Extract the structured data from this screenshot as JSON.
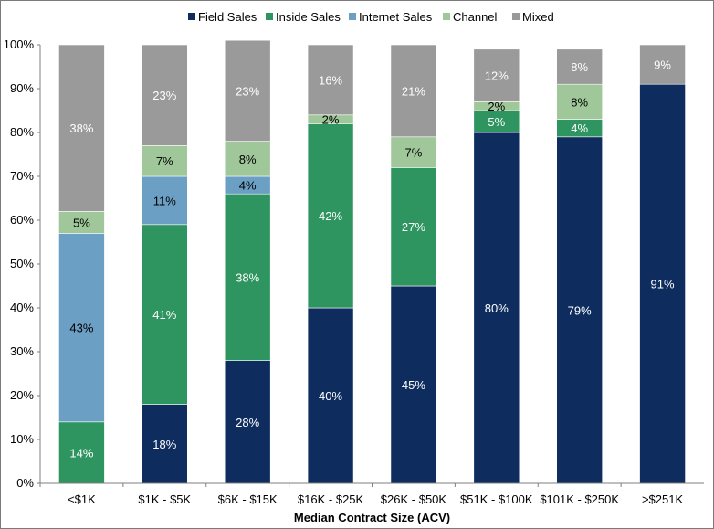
{
  "chart_data": {
    "type": "bar",
    "stacked": true,
    "title": "",
    "xlabel": "Median Contract Size (ACV)",
    "ylabel": "",
    "ylim": [
      0,
      100
    ],
    "y_ticks": [
      "0%",
      "10%",
      "20%",
      "30%",
      "40%",
      "50%",
      "60%",
      "70%",
      "80%",
      "90%",
      "100%"
    ],
    "grid": false,
    "legend_position": "top",
    "categories": [
      "<$1K",
      "$1K - $5K",
      "$6K - $15K",
      "$16K - $25K",
      "$26K - $50K",
      "$51K - $100K",
      "$101K - $250K",
      ">$251K"
    ],
    "series": [
      {
        "name": "Field Sales",
        "color": "#0e2d5e",
        "label_color": "#ffffff",
        "values": [
          0,
          18,
          28,
          40,
          45,
          80,
          79,
          91
        ],
        "labels": [
          "",
          "18%",
          "28%",
          "40%",
          "45%",
          "80%",
          "79%",
          "91%"
        ]
      },
      {
        "name": "Inside Sales",
        "color": "#2e9460",
        "label_color": "#ffffff",
        "values": [
          14,
          41,
          38,
          42,
          27,
          5,
          4,
          0
        ],
        "labels": [
          "14%",
          "41%",
          "38%",
          "42%",
          "27%",
          "5%",
          "4%",
          ""
        ]
      },
      {
        "name": "Internet Sales",
        "color": "#6b9fc4",
        "label_color": "#000000",
        "values": [
          43,
          11,
          4,
          0,
          0,
          0,
          0,
          0
        ],
        "labels": [
          "43%",
          "11%",
          "4%",
          "",
          "",
          "",
          "",
          ""
        ]
      },
      {
        "name": "Channel",
        "color": "#9fc79a",
        "label_color": "#000000",
        "values": [
          5,
          7,
          8,
          2,
          7,
          2,
          8,
          0
        ],
        "labels": [
          "5%",
          "7%",
          "8%",
          "2%",
          "7%",
          "2%",
          "8%",
          ""
        ]
      },
      {
        "name": "Mixed",
        "color": "#9a9a9a",
        "label_color": "#ffffff",
        "values": [
          38,
          23,
          23,
          16,
          21,
          12,
          8,
          9
        ],
        "labels": [
          "38%",
          "23%",
          "23%",
          "16%",
          "21%",
          "12%",
          "8%",
          "9%"
        ]
      }
    ]
  }
}
